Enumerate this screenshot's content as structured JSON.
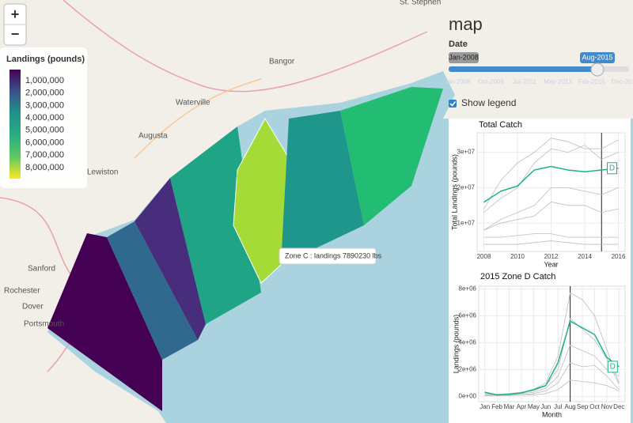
{
  "map": {
    "zoom_in": "+",
    "zoom_out": "−",
    "places": [
      "St. Stephen",
      "Bangor",
      "Waterville",
      "Augusta",
      "Lewiston",
      "Sanford",
      "Rochester",
      "Dover",
      "Portsmouth"
    ],
    "tooltip": "Zone C : landings 7890230 lbs"
  },
  "legend": {
    "title": "Landings (pounds)",
    "colors": [
      "#440154",
      "#3b528b",
      "#21908c",
      "#27ad81",
      "#5dc863",
      "#fde725"
    ],
    "ticks": [
      "1,000,000",
      "2,000,000",
      "3,000,000",
      "4,000,000",
      "5,000,000",
      "6,000,000",
      "7,000,000",
      "8,000,000"
    ]
  },
  "panel": {
    "title": "map",
    "date_label": "Date",
    "slider": {
      "start": "Jan-2008",
      "value": "Aug-2015",
      "ticks": [
        "Jan-2008",
        "Oct-2009",
        "Jul-2011",
        "May-2013",
        "Feb-2015",
        "Dec-2016"
      ]
    },
    "checkbox": "Show legend"
  },
  "chart_data": [
    {
      "type": "line",
      "title": "Total Catch",
      "x_label": "Year",
      "y_label": "Total Landings (pounds)",
      "x": [
        2008,
        2009,
        2010,
        2011,
        2012,
        2013,
        2014,
        2015,
        2016
      ],
      "xlim": [
        2007.6,
        2016.4
      ],
      "xticks": [
        2008,
        2010,
        2012,
        2014,
        2016
      ],
      "ylim": [
        2000000,
        35500000
      ],
      "yticks": [
        {
          "value": 10000000,
          "label": "1e+07"
        },
        {
          "value": 20000000,
          "label": "2e+07"
        },
        {
          "value": 30000000,
          "label": "3e+07"
        }
      ],
      "vline": 2015,
      "grid": true,
      "series": [
        {
          "color": "#bdbdbd",
          "values": [
            14000000,
            22000000,
            27000000,
            30000000,
            34000000,
            33000000,
            31000000,
            31000000,
            33500000
          ]
        },
        {
          "color": "#bdbdbd",
          "values": [
            13000000,
            17000000,
            20000000,
            27000000,
            31000000,
            30000000,
            32000000,
            28000000,
            30000000
          ]
        },
        {
          "color": "#bdbdbd",
          "values": [
            8000000,
            11000000,
            13000000,
            15000000,
            20000000,
            20000000,
            19000000,
            18000000,
            20000000
          ]
        },
        {
          "color": "#bdbdbd",
          "values": [
            8000000,
            10000000,
            11000000,
            12000000,
            16000000,
            15000000,
            15000000,
            13000000,
            14000000
          ]
        },
        {
          "color": "#bdbdbd",
          "values": [
            6000000,
            6000000,
            6500000,
            7000000,
            7000000,
            6000000,
            6000000,
            6000000,
            6000000
          ]
        },
        {
          "color": "#bdbdbd",
          "values": [
            4000000,
            4000000,
            4000000,
            4500000,
            5000000,
            4500000,
            4000000,
            4000000,
            4000000
          ]
        },
        {
          "name": "D",
          "color": "#1db37f",
          "values": [
            15900000,
            19000000,
            20500000,
            25000000,
            26000000,
            25000000,
            24500000,
            25000000,
            25500000
          ]
        }
      ]
    },
    {
      "type": "line",
      "title": "2015 Zone D Catch",
      "x_label": "Month",
      "y_label": "Landings (pounds)",
      "categories": [
        "Jan",
        "Feb",
        "Mar",
        "Apr",
        "May",
        "Jun",
        "Jul",
        "Aug",
        "Sep",
        "Oct",
        "Nov",
        "Dec"
      ],
      "ylim": [
        -400000,
        8200000
      ],
      "yticks": [
        {
          "value": 0,
          "label": "0e+00"
        },
        {
          "value": 2000000,
          "label": "2e+06"
        },
        {
          "value": 4000000,
          "label": "4e+06"
        },
        {
          "value": 6000000,
          "label": "6e+06"
        },
        {
          "value": 8000000,
          "label": "8e+06"
        }
      ],
      "vline": "Aug",
      "grid": true,
      "series": [
        {
          "color": "#bdbdbd",
          "values": [
            200000,
            150000,
            200000,
            300000,
            500000,
            1000000,
            3000000,
            7700000,
            7200000,
            6000000,
            3500000,
            1000000
          ]
        },
        {
          "color": "#bdbdbd",
          "values": [
            200000,
            100000,
            200000,
            300000,
            400000,
            800000,
            2000000,
            5800000,
            5000000,
            4200000,
            2800000,
            900000
          ]
        },
        {
          "color": "#bdbdbd",
          "values": [
            100000,
            100000,
            100000,
            200000,
            300000,
            600000,
            1500000,
            3800000,
            3400000,
            3000000,
            2000000,
            1500000
          ]
        },
        {
          "color": "#bdbdbd",
          "values": [
            100000,
            100000,
            100000,
            100000,
            200000,
            400000,
            1000000,
            2500000,
            2200000,
            2300000,
            1500000,
            500000
          ]
        },
        {
          "color": "#bdbdbd",
          "values": [
            50000,
            50000,
            50000,
            100000,
            100000,
            200000,
            500000,
            1200000,
            1100000,
            1000000,
            800000,
            400000
          ]
        },
        {
          "name": "D",
          "color": "#1db37f",
          "values": [
            300000,
            100000,
            150000,
            250000,
            500000,
            800000,
            2500000,
            5600000,
            5100000,
            4600000,
            2900000,
            2200000
          ]
        }
      ]
    }
  ]
}
